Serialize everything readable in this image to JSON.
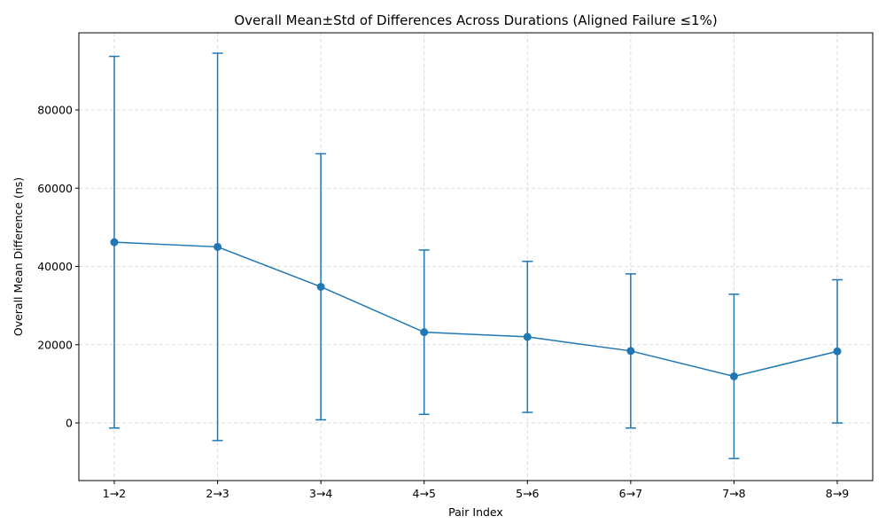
{
  "chart_data": {
    "type": "line",
    "title": "Overall Mean±Std of Differences Across Durations (Aligned Failure ≤1%)",
    "xlabel": "Pair Index",
    "ylabel": "Overall Mean Difference (ns)",
    "categories": [
      "1→2",
      "2→3",
      "3→4",
      "4→5",
      "5→6",
      "6→7",
      "7→8",
      "8→9"
    ],
    "series": [
      {
        "values": [
          46200,
          45000,
          34800,
          23200,
          22000,
          18400,
          11900,
          18300
        ],
        "std": [
          47500,
          49500,
          34000,
          21000,
          19300,
          19700,
          21000,
          18300
        ]
      }
    ],
    "ylim": [
      -15000,
      98000
    ],
    "yticks": [
      0,
      20000,
      40000,
      60000,
      80000
    ],
    "grid": true,
    "error_bars": true,
    "color": "#1f77b4",
    "grid_color": "#d3d3d3"
  }
}
